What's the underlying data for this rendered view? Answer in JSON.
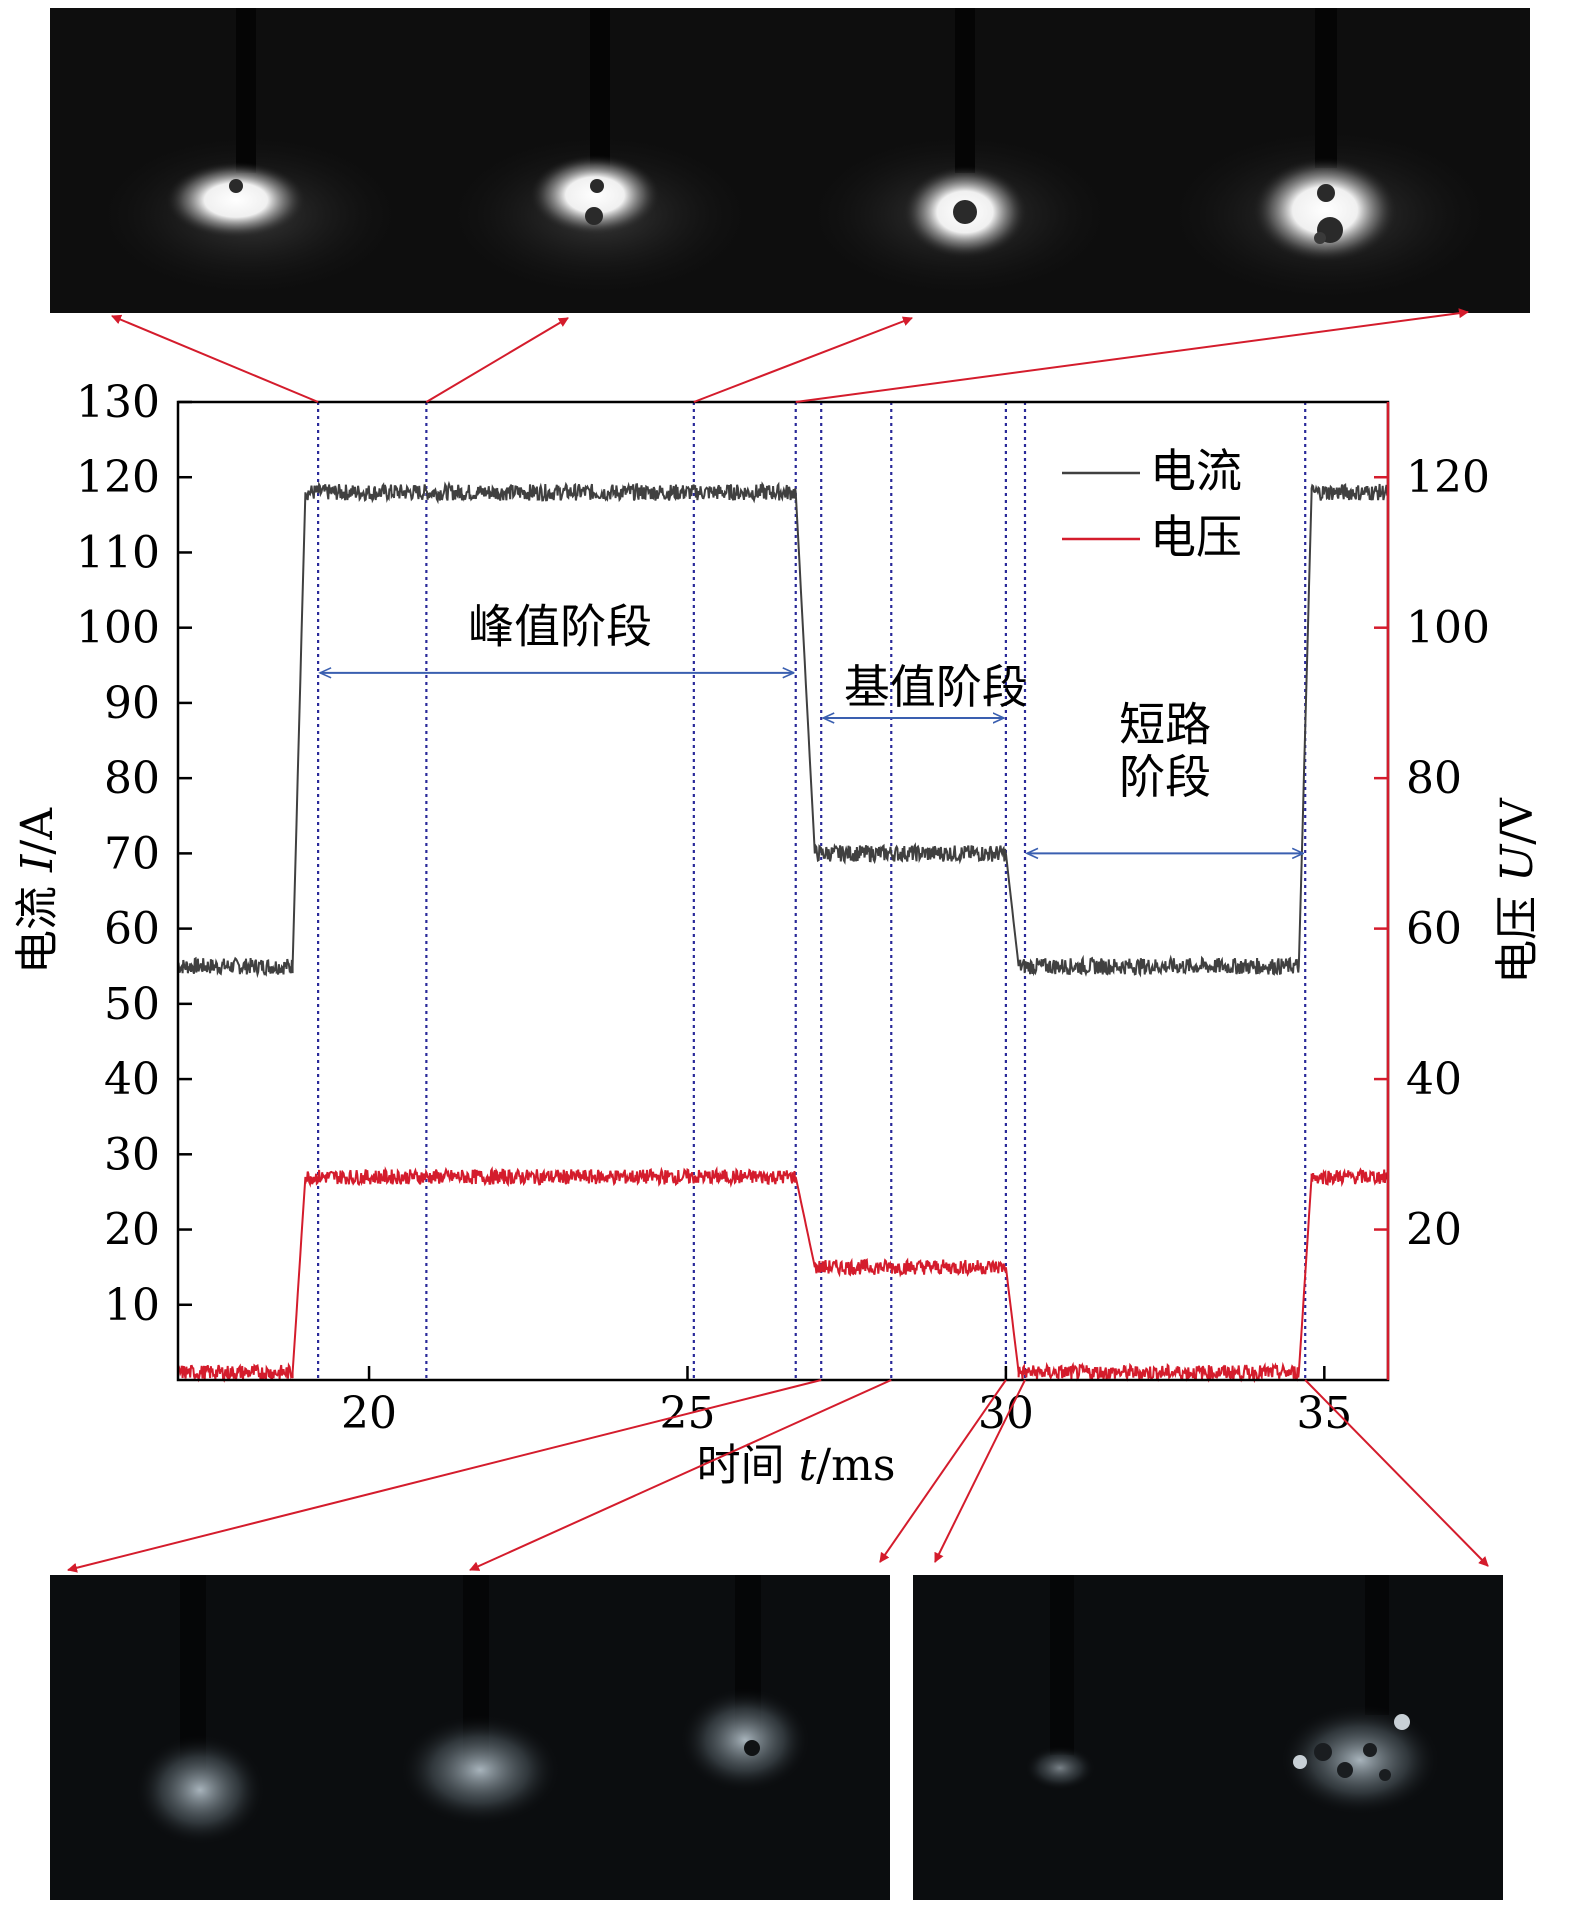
{
  "chart_data": {
    "type": "line",
    "xlabel_parts": [
      "时间 ",
      "t",
      "/ms"
    ],
    "ylabel_left_parts": [
      "电流 ",
      "I",
      "/A"
    ],
    "ylabel_right_parts": [
      "电压 ",
      "U",
      "/V"
    ],
    "xlim": [
      17,
      36
    ],
    "ylim_left": [
      0,
      130
    ],
    "ylim_right": [
      0,
      130
    ],
    "x_ticks": [
      20,
      25,
      30,
      35
    ],
    "y_left_ticks": [
      10,
      20,
      30,
      40,
      50,
      60,
      70,
      80,
      90,
      100,
      110,
      120,
      130
    ],
    "y_right_ticks": [
      20,
      40,
      60,
      80,
      100,
      120
    ],
    "legend": {
      "placement": "top-right",
      "entries": [
        "电流",
        "电压"
      ]
    },
    "series": [
      {
        "name": "电流",
        "color": "#404040",
        "axis": "left",
        "noise": 1.1,
        "points": [
          [
            17.0,
            55
          ],
          [
            18.8,
            55
          ],
          [
            19.0,
            118
          ],
          [
            26.7,
            118
          ],
          [
            27.0,
            70
          ],
          [
            30.0,
            70
          ],
          [
            30.2,
            55
          ],
          [
            34.6,
            55
          ],
          [
            34.8,
            118
          ],
          [
            36.0,
            118
          ]
        ]
      },
      {
        "name": "电压",
        "color": "#d41c2c",
        "axis": "right",
        "noise": 1.0,
        "points": [
          [
            17.0,
            1
          ],
          [
            18.8,
            1
          ],
          [
            19.0,
            27
          ],
          [
            26.7,
            27
          ],
          [
            27.0,
            15
          ],
          [
            30.0,
            15
          ],
          [
            30.2,
            1
          ],
          [
            34.6,
            1
          ],
          [
            34.8,
            27
          ],
          [
            36.0,
            27
          ]
        ]
      }
    ],
    "marker_lines_x": [
      19.2,
      20.9,
      25.1,
      26.7,
      27.1,
      28.2,
      30.0,
      30.3,
      34.7
    ],
    "annotations": [
      {
        "text": "峰值阶段",
        "x": 23.0,
        "y": 100,
        "span": [
          19.2,
          26.7
        ],
        "span_y": 94
      },
      {
        "text": "基值阶段",
        "x": 28.9,
        "y": 92,
        "span": [
          27.1,
          30.0
        ],
        "span_y": 88
      },
      {
        "text": "短路",
        "x": 32.5,
        "y": 87,
        "span": [
          30.3,
          34.7
        ],
        "span_y": 70
      },
      {
        "text": "阶段",
        "x": 32.5,
        "y": 80
      }
    ],
    "colors": {
      "markers": "#2a2a9a",
      "arrows": "#d41c2c",
      "brackets": "#3a5fb0"
    }
  }
}
